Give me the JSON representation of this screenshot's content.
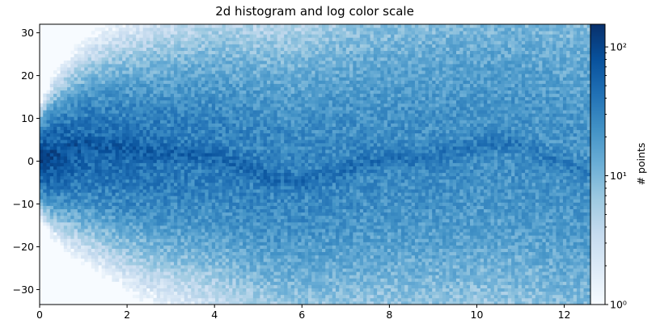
{
  "chart_data": {
    "type": "heatmap",
    "title": "2d histogram and log color scale",
    "xlabel": "",
    "ylabel": "",
    "xlim": [
      0,
      12.6
    ],
    "ylim": [
      -33.5,
      32
    ],
    "x_ticks": [
      0,
      2,
      4,
      6,
      8,
      10,
      12
    ],
    "y_ticks": [
      -30,
      -20,
      -10,
      0,
      10,
      20,
      30
    ],
    "colorbar": {
      "label": "# points",
      "scale": "log",
      "range": [
        1,
        150
      ],
      "ticks": [
        {
          "value": 1,
          "label": "10⁰"
        },
        {
          "value": 10,
          "label": "10¹"
        },
        {
          "value": 100,
          "label": "10²"
        }
      ],
      "cmap": "Blues"
    },
    "grid": false
  }
}
